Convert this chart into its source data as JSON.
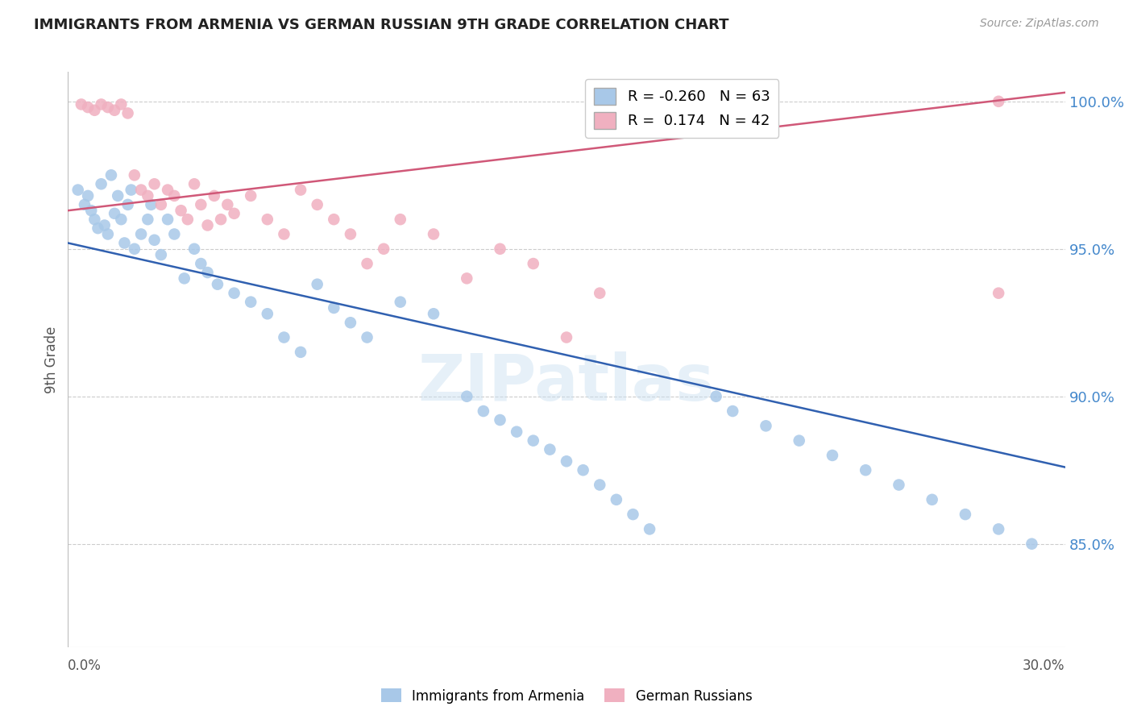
{
  "title": "IMMIGRANTS FROM ARMENIA VS GERMAN RUSSIAN 9TH GRADE CORRELATION CHART",
  "source": "Source: ZipAtlas.com",
  "ylabel": "9th Grade",
  "ytick_labels": [
    "100.0%",
    "95.0%",
    "90.0%",
    "85.0%"
  ],
  "ytick_values": [
    1.0,
    0.95,
    0.9,
    0.85
  ],
  "xlim": [
    0.0,
    0.3
  ],
  "ylim": [
    0.815,
    1.01
  ],
  "legend_blue_r": "-0.260",
  "legend_blue_n": "63",
  "legend_pink_r": " 0.174",
  "legend_pink_n": "42",
  "blue_color": "#a8c8e8",
  "pink_color": "#f0b0c0",
  "blue_line_color": "#3060b0",
  "pink_line_color": "#d05878",
  "watermark": "ZIPatlas",
  "blue_scatter_x": [
    0.003,
    0.005,
    0.006,
    0.007,
    0.008,
    0.009,
    0.01,
    0.011,
    0.012,
    0.013,
    0.014,
    0.015,
    0.016,
    0.017,
    0.018,
    0.019,
    0.02,
    0.022,
    0.024,
    0.025,
    0.026,
    0.028,
    0.03,
    0.032,
    0.035,
    0.038,
    0.04,
    0.042,
    0.045,
    0.05,
    0.055,
    0.06,
    0.065,
    0.07,
    0.075,
    0.08,
    0.085,
    0.09,
    0.1,
    0.11,
    0.12,
    0.125,
    0.13,
    0.135,
    0.14,
    0.145,
    0.15,
    0.155,
    0.16,
    0.165,
    0.17,
    0.175,
    0.195,
    0.2,
    0.21,
    0.22,
    0.23,
    0.24,
    0.25,
    0.26,
    0.27,
    0.28,
    0.29
  ],
  "blue_scatter_y": [
    0.97,
    0.965,
    0.968,
    0.963,
    0.96,
    0.957,
    0.972,
    0.958,
    0.955,
    0.975,
    0.962,
    0.968,
    0.96,
    0.952,
    0.965,
    0.97,
    0.95,
    0.955,
    0.96,
    0.965,
    0.953,
    0.948,
    0.96,
    0.955,
    0.94,
    0.95,
    0.945,
    0.942,
    0.938,
    0.935,
    0.932,
    0.928,
    0.92,
    0.915,
    0.938,
    0.93,
    0.925,
    0.92,
    0.932,
    0.928,
    0.9,
    0.895,
    0.892,
    0.888,
    0.885,
    0.882,
    0.878,
    0.875,
    0.87,
    0.865,
    0.86,
    0.855,
    0.9,
    0.895,
    0.89,
    0.885,
    0.88,
    0.875,
    0.87,
    0.865,
    0.86,
    0.855,
    0.85
  ],
  "pink_scatter_x": [
    0.004,
    0.006,
    0.008,
    0.01,
    0.012,
    0.014,
    0.016,
    0.018,
    0.02,
    0.022,
    0.024,
    0.026,
    0.028,
    0.03,
    0.032,
    0.034,
    0.036,
    0.038,
    0.04,
    0.042,
    0.044,
    0.046,
    0.048,
    0.05,
    0.055,
    0.06,
    0.065,
    0.07,
    0.075,
    0.08,
    0.085,
    0.09,
    0.095,
    0.1,
    0.11,
    0.12,
    0.13,
    0.14,
    0.15,
    0.16,
    0.28,
    0.28
  ],
  "pink_scatter_y": [
    0.999,
    0.998,
    0.997,
    0.999,
    0.998,
    0.997,
    0.999,
    0.996,
    0.975,
    0.97,
    0.968,
    0.972,
    0.965,
    0.97,
    0.968,
    0.963,
    0.96,
    0.972,
    0.965,
    0.958,
    0.968,
    0.96,
    0.965,
    0.962,
    0.968,
    0.96,
    0.955,
    0.97,
    0.965,
    0.96,
    0.955,
    0.945,
    0.95,
    0.96,
    0.955,
    0.94,
    0.95,
    0.945,
    0.92,
    0.935,
    1.0,
    0.935
  ],
  "blue_line_x": [
    0.0,
    0.3
  ],
  "blue_line_y": [
    0.952,
    0.876
  ],
  "pink_line_x": [
    0.0,
    0.3
  ],
  "pink_line_y": [
    0.963,
    1.003
  ]
}
